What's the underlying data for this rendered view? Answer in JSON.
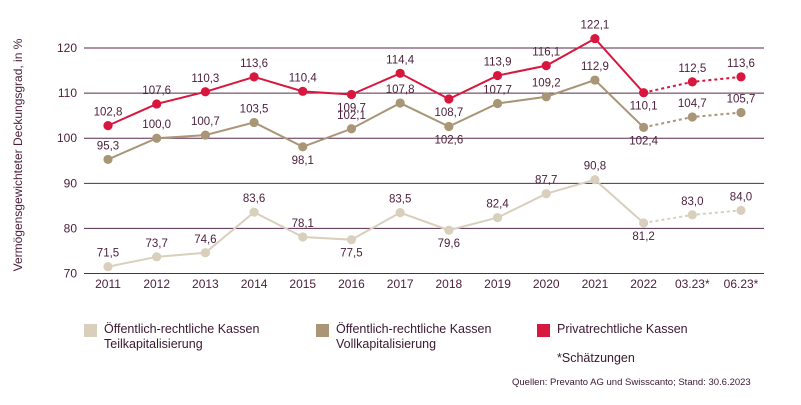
{
  "chart_data": {
    "type": "line",
    "ylabel": "Vermögensgewichteter Deckungsgrad, in %",
    "ylim": [
      70,
      125
    ],
    "yticks": [
      70,
      80,
      90,
      100,
      110,
      120
    ],
    "categories": [
      "2011",
      "2012",
      "2013",
      "2014",
      "2015",
      "2016",
      "2017",
      "2018",
      "2019",
      "2020",
      "2021",
      "2022",
      "03.23*",
      "06.23*"
    ],
    "estimate_from_index": 11,
    "grid": true,
    "series": [
      {
        "name": "Öffentlich-rechtliche Kassen Teilkapitalisierung",
        "color": "#d9cfbd",
        "values": [
          71.5,
          73.7,
          74.6,
          83.6,
          78.1,
          77.5,
          83.5,
          79.6,
          82.4,
          87.7,
          90.8,
          81.2,
          83.0,
          84.0
        ],
        "labels": [
          "71,5",
          "73,7",
          "74,6",
          "83,6",
          "78,1",
          "77,5",
          "83,5",
          "79,6",
          "82,4",
          "87,7",
          "90,8",
          "81,2",
          "83,0",
          "84,0"
        ]
      },
      {
        "name": "Öffentlich-rechtliche Kassen Vollkapitalisierung",
        "color": "#a89676",
        "values": [
          95.3,
          100.0,
          100.7,
          103.5,
          98.1,
          102.1,
          107.8,
          102.6,
          107.7,
          109.2,
          112.9,
          102.4,
          104.7,
          105.7
        ],
        "labels": [
          "95,3",
          "100,0",
          "100,7",
          "103,5",
          "98,1",
          "102,1",
          "107,8",
          "102,6",
          "107,7",
          "109,2",
          "112,9",
          "102,4",
          "104,7",
          "105,7"
        ]
      },
      {
        "name": "Privatrechtliche Kassen",
        "color": "#d8173f",
        "values": [
          102.8,
          107.6,
          110.3,
          113.6,
          110.4,
          109.7,
          114.4,
          108.7,
          113.9,
          116.1,
          122.1,
          110.1,
          112.5,
          113.6
        ],
        "labels": [
          "102,8",
          "107,6",
          "110,3",
          "113,6",
          "110,4",
          "109,7",
          "114,4",
          "108,7",
          "113,9",
          "116,1",
          "122,1",
          "110,1",
          "112,5",
          "113,6"
        ]
      }
    ]
  },
  "legend": {
    "item1_line1": "Öffentlich-rechtliche Kassen",
    "item1_line2": "Teilkapitalisierung",
    "item2_line1": "Öffentlich-rechtliche Kassen",
    "item2_line2": "Vollkapitalisierung",
    "item3_line1": "Privatrechtliche Kassen"
  },
  "note": "*Schätzungen",
  "source": "Quellen: Prevanto AG und Swisscanto; Stand: 30.6.2023",
  "colors": {
    "axis_text": "#4a1e3a",
    "grid": "#5a2a4e"
  }
}
